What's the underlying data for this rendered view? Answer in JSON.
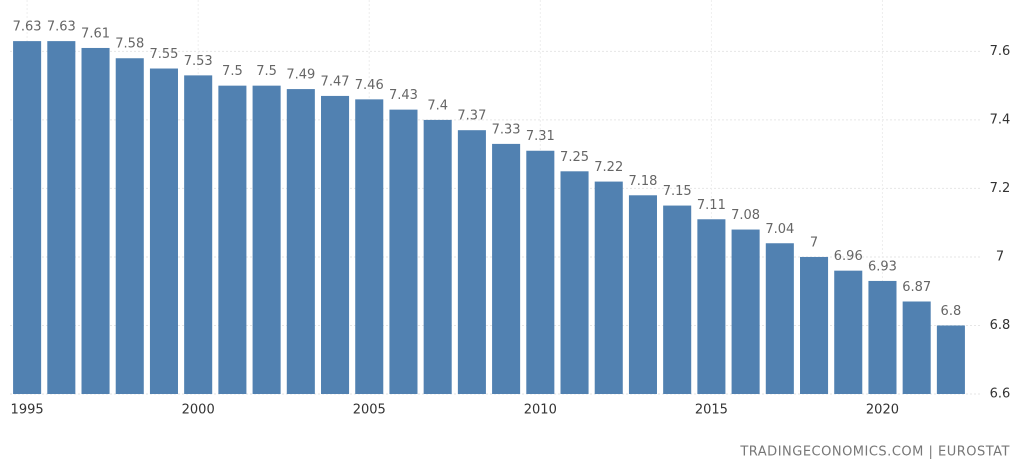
{
  "chart_data": {
    "type": "bar",
    "categories": [
      "1995",
      null,
      null,
      null,
      null,
      "2000",
      null,
      null,
      null,
      null,
      "2005",
      null,
      null,
      null,
      null,
      "2010",
      null,
      null,
      null,
      null,
      "2015",
      null,
      null,
      null,
      null,
      "2020",
      null,
      null
    ],
    "values": [
      7.63,
      7.63,
      7.61,
      7.58,
      7.55,
      7.53,
      7.5,
      7.5,
      7.49,
      7.47,
      7.46,
      7.43,
      7.4,
      7.37,
      7.33,
      7.31,
      7.25,
      7.22,
      7.18,
      7.15,
      7.11,
      7.08,
      7.04,
      7,
      6.96,
      6.93,
      6.87,
      6.8
    ],
    "color": "#5181b1",
    "ylim": [
      6.6,
      7.75
    ],
    "yticks": [
      6.6,
      6.8,
      7,
      7.2,
      7.4,
      7.6
    ],
    "grid": true,
    "source": "TRADINGECONOMICS.COM | EUROSTAT"
  }
}
